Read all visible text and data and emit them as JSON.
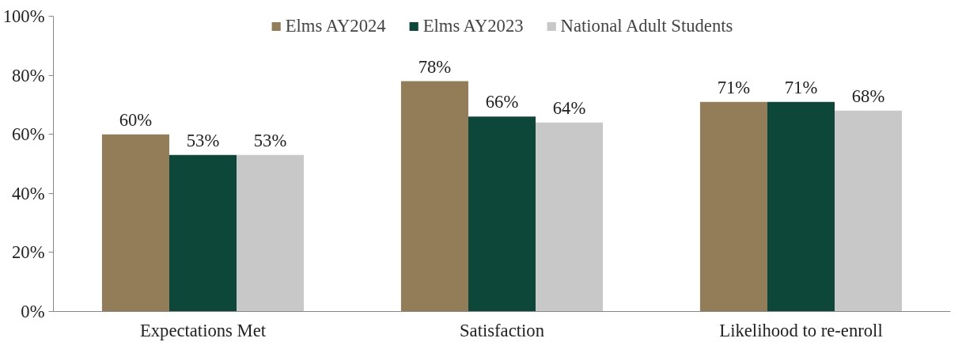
{
  "chart_data": {
    "type": "bar",
    "categories": [
      "Expectations Met",
      "Satisfaction",
      "Likelihood to re-enroll"
    ],
    "series": [
      {
        "name": "Elms AY2024",
        "color": "#937d58",
        "values": [
          60,
          78,
          71
        ],
        "value_labels": [
          "60%",
          "78%",
          "71%"
        ]
      },
      {
        "name": "Elms AY2023",
        "color": "#0d4739",
        "values": [
          53,
          66,
          71
        ],
        "value_labels": [
          "53%",
          "66%",
          "71%"
        ]
      },
      {
        "name": "National Adult Students",
        "color": "#c8c8c8",
        "values": [
          53,
          64,
          68
        ],
        "value_labels": [
          "53%",
          "64%",
          "68%"
        ]
      }
    ],
    "ylim": [
      0,
      100
    ],
    "yticks": [
      {
        "value": 0,
        "label": "0%"
      },
      {
        "value": 20,
        "label": "20%"
      },
      {
        "value": 40,
        "label": "40%"
      },
      {
        "value": 60,
        "label": "60%"
      },
      {
        "value": 80,
        "label": "80%"
      },
      {
        "value": 100,
        "label": "100%"
      }
    ],
    "grid": false,
    "legend": "top"
  }
}
